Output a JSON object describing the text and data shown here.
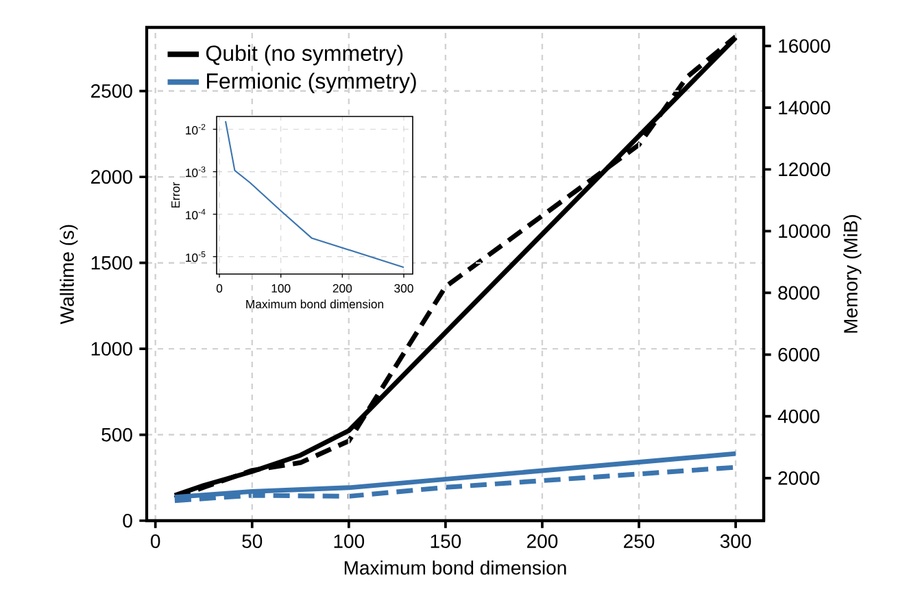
{
  "chart_data": [
    {
      "type": "line",
      "xlabel": "Maximum bond dimension",
      "ylabel": "Walltime (s)",
      "y2label": "Memory (MiB)",
      "xlim": [
        -4.5,
        314.5
      ],
      "xticks": [
        0,
        50,
        100,
        150,
        200,
        250,
        300
      ],
      "ylim": [
        0,
        2870
      ],
      "yticks": [
        0,
        500,
        1000,
        1500,
        2000,
        2500
      ],
      "y2lim": [
        620,
        16600
      ],
      "y2ticks": [
        2000,
        4000,
        6000,
        8000,
        10000,
        12000,
        14000,
        16000
      ],
      "grid": true,
      "legend": "top left",
      "series": [
        {
          "name": "Qubit (no symmetry)",
          "color": "#000000",
          "x": [
            10,
            25,
            50,
            75,
            100,
            300
          ],
          "values": [
            147,
            205,
            286,
            381,
            524,
            2810
          ]
        },
        {
          "name": "Fermionic (symmetry)",
          "color": "#3b75af",
          "x": [
            10,
            50,
            100,
            300
          ],
          "values": [
            137,
            170,
            192,
            390
          ]
        },
        {
          "color": "#000000",
          "axis": "y2",
          "line_style": "dashed",
          "x": [
            10,
            25,
            50,
            75,
            100,
            150,
            200,
            250,
            275,
            300
          ],
          "values": [
            1350,
            1700,
            2250,
            2500,
            3200,
            8200,
            10500,
            12800,
            15000,
            16300
          ]
        },
        {
          "color": "#3b75af",
          "axis": "y2",
          "line_style": "dashed",
          "x": [
            10,
            50,
            100,
            150,
            300
          ],
          "values": [
            1270,
            1440,
            1410,
            1700,
            2350
          ]
        }
      ]
    },
    {
      "type": "line",
      "xlabel": "Maximum bond dimension",
      "ylabel": "Error",
      "log": "y",
      "xlim": [
        -4.5,
        314.5
      ],
      "xticks": [
        0,
        100,
        200,
        300
      ],
      "ylim": [
        3.9e-06,
        0.02
      ],
      "yticks": [
        {
          "value": 0.01,
          "label": "10$^{-2}$"
        },
        {
          "value": 0.001,
          "label": "10$^{-3}$"
        },
        {
          "value": 0.0001,
          "label": "10$^{-4}$"
        },
        {
          "value": 1e-05,
          "label": "10$^{-5}$"
        }
      ],
      "grid": true,
      "series": [
        {
          "color": "#3b75af",
          "x": [
            10,
            25,
            50,
            100,
            150,
            300
          ],
          "values": [
            0.0155,
            0.00107,
            0.00055,
            0.00012,
            2.75e-05,
            5.6e-06
          ]
        }
      ]
    }
  ]
}
